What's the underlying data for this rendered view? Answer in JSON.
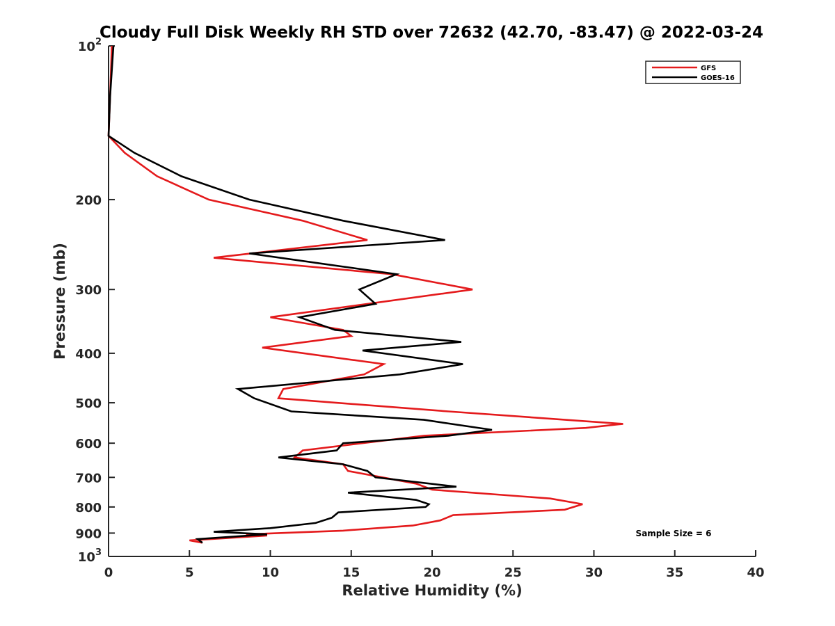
{
  "chart_data": {
    "type": "line",
    "title": "Cloudy Full Disk Weekly RH STD over 72632 (42.70, -83.47) @ 2022-03-24",
    "xlabel": "Relative Humidity (%)",
    "ylabel": "Pressure (mb)",
    "xlim": [
      0,
      40
    ],
    "ylim": [
      100,
      1000
    ],
    "y_scale": "log",
    "y_reversed": true,
    "grid": false,
    "legend_position": "top-right",
    "x_ticks": [
      {
        "value": 0,
        "label": "0"
      },
      {
        "value": 5,
        "label": "5"
      },
      {
        "value": 10,
        "label": "10"
      },
      {
        "value": 15,
        "label": "15"
      },
      {
        "value": 20,
        "label": "20"
      },
      {
        "value": 25,
        "label": "25"
      },
      {
        "value": 30,
        "label": "30"
      },
      {
        "value": 35,
        "label": "35"
      },
      {
        "value": 40,
        "label": "40"
      }
    ],
    "y_ticks": [
      {
        "value": 100,
        "base": "10",
        "exp": "2"
      },
      {
        "value": 200,
        "base": "200",
        "exp": ""
      },
      {
        "value": 300,
        "base": "300",
        "exp": ""
      },
      {
        "value": 400,
        "base": "400",
        "exp": ""
      },
      {
        "value": 500,
        "base": "500",
        "exp": ""
      },
      {
        "value": 600,
        "base": "600",
        "exp": ""
      },
      {
        "value": 700,
        "base": "700",
        "exp": ""
      },
      {
        "value": 800,
        "base": "800",
        "exp": ""
      },
      {
        "value": 900,
        "base": "900",
        "exp": ""
      },
      {
        "value": 1000,
        "base": "10",
        "exp": "3"
      }
    ],
    "annotation": "Sample Size = 6",
    "series": [
      {
        "name": "GFS",
        "color": "#e41a1c",
        "points": [
          [
            0.2,
            100
          ],
          [
            0.1,
            125
          ],
          [
            0.0,
            150
          ],
          [
            1.0,
            162
          ],
          [
            3.0,
            180
          ],
          [
            6.2,
            200
          ],
          [
            12.0,
            220
          ],
          [
            16.0,
            240
          ],
          [
            6.5,
            260
          ],
          [
            17.5,
            280
          ],
          [
            22.5,
            300
          ],
          [
            10.0,
            340
          ],
          [
            14.5,
            360
          ],
          [
            15.0,
            370
          ],
          [
            9.5,
            390
          ],
          [
            17.0,
            420
          ],
          [
            15.8,
            440
          ],
          [
            10.8,
            470
          ],
          [
            10.5,
            490
          ],
          [
            21.0,
            520
          ],
          [
            31.8,
            550
          ],
          [
            29.5,
            560
          ],
          [
            19.5,
            580
          ],
          [
            12.0,
            620
          ],
          [
            11.5,
            640
          ],
          [
            14.5,
            660
          ],
          [
            14.8,
            680
          ],
          [
            19.0,
            720
          ],
          [
            20.0,
            740
          ],
          [
            27.3,
            770
          ],
          [
            29.3,
            790
          ],
          [
            28.2,
            810
          ],
          [
            21.3,
            830
          ],
          [
            20.5,
            850
          ],
          [
            18.8,
            870
          ],
          [
            14.5,
            890
          ],
          [
            8.5,
            905
          ],
          [
            9.8,
            910
          ],
          [
            5.0,
            930
          ],
          [
            5.8,
            940
          ]
        ]
      },
      {
        "name": "GOES-16",
        "color": "#000000",
        "points": [
          [
            0.3,
            100
          ],
          [
            0.1,
            125
          ],
          [
            0.0,
            150
          ],
          [
            1.6,
            162
          ],
          [
            4.5,
            180
          ],
          [
            8.7,
            200
          ],
          [
            14.5,
            220
          ],
          [
            20.8,
            240
          ],
          [
            8.7,
            255
          ],
          [
            17.8,
            280
          ],
          [
            15.5,
            300
          ],
          [
            16.5,
            320
          ],
          [
            11.8,
            340
          ],
          [
            14.0,
            360
          ],
          [
            21.8,
            380
          ],
          [
            15.7,
            395
          ],
          [
            21.9,
            420
          ],
          [
            18.0,
            440
          ],
          [
            8.0,
            470
          ],
          [
            9.0,
            490
          ],
          [
            11.3,
            520
          ],
          [
            19.5,
            540
          ],
          [
            23.7,
            565
          ],
          [
            21.0,
            580
          ],
          [
            14.5,
            600
          ],
          [
            14.1,
            620
          ],
          [
            10.5,
            640
          ],
          [
            14.5,
            660
          ],
          [
            16.0,
            680
          ],
          [
            16.5,
            700
          ],
          [
            21.5,
            730
          ],
          [
            14.8,
            750
          ],
          [
            19.0,
            775
          ],
          [
            19.8,
            790
          ],
          [
            19.6,
            800
          ],
          [
            14.2,
            820
          ],
          [
            13.8,
            840
          ],
          [
            12.8,
            860
          ],
          [
            10.0,
            880
          ],
          [
            6.5,
            895
          ],
          [
            9.8,
            905
          ],
          [
            5.5,
            925
          ],
          [
            5.8,
            940
          ]
        ]
      }
    ]
  }
}
